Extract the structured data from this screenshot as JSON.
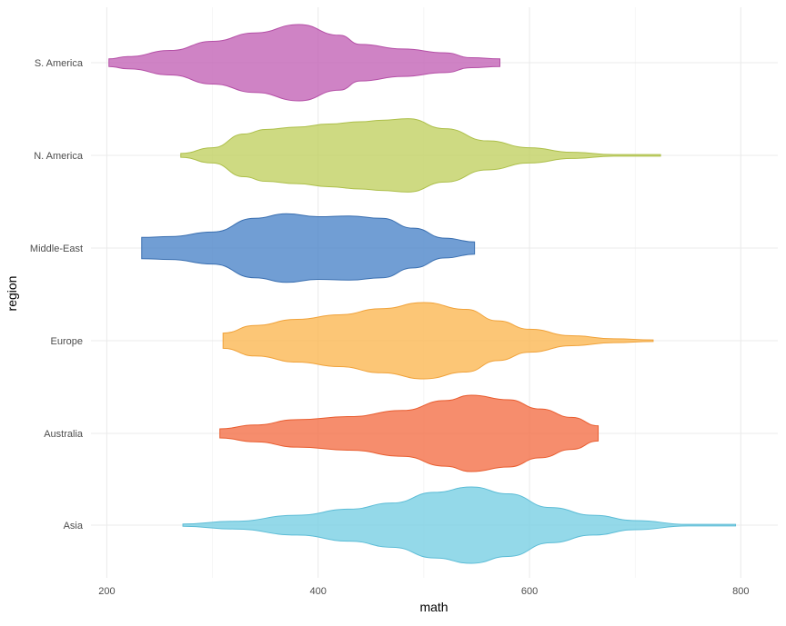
{
  "chart_data": {
    "type": "violin",
    "orientation": "horizontal",
    "title": "",
    "xlabel": "math",
    "ylabel": "region",
    "xlim": [
      185,
      835
    ],
    "x_ticks": [
      200,
      400,
      600,
      800
    ],
    "x_tick_labels": [
      "200",
      "400",
      "600",
      "800"
    ],
    "grid": true,
    "legend": "none",
    "categories": [
      "S. America",
      "N. America",
      "Middle-East",
      "Europe",
      "Australia",
      "Asia"
    ],
    "series": [
      {
        "category": "S. America",
        "fill": "#c364b6",
        "stroke": "#b44fa6",
        "profile": [
          [
            202,
            0.1
          ],
          [
            220,
            0.16
          ],
          [
            260,
            0.32
          ],
          [
            300,
            0.56
          ],
          [
            340,
            0.78
          ],
          [
            382,
            1.0
          ],
          [
            420,
            0.72
          ],
          [
            440,
            0.48
          ],
          [
            480,
            0.36
          ],
          [
            520,
            0.26
          ],
          [
            545,
            0.13
          ],
          [
            572,
            0.1
          ]
        ]
      },
      {
        "category": "N. America",
        "fill": "#c2d163",
        "stroke": "#adbf4a",
        "profile": [
          [
            270,
            0.05
          ],
          [
            300,
            0.2
          ],
          [
            330,
            0.56
          ],
          [
            350,
            0.68
          ],
          [
            380,
            0.74
          ],
          [
            410,
            0.82
          ],
          [
            440,
            0.88
          ],
          [
            460,
            0.92
          ],
          [
            485,
            0.96
          ],
          [
            520,
            0.7
          ],
          [
            560,
            0.38
          ],
          [
            600,
            0.2
          ],
          [
            640,
            0.08
          ],
          [
            680,
            0.02
          ],
          [
            724,
            0.02
          ]
        ]
      },
      {
        "category": "Middle-East",
        "fill": "#4d86c9",
        "stroke": "#3a6fb0",
        "profile": [
          [
            233,
            0.28
          ],
          [
            260,
            0.3
          ],
          [
            300,
            0.42
          ],
          [
            340,
            0.78
          ],
          [
            370,
            0.9
          ],
          [
            400,
            0.82
          ],
          [
            430,
            0.84
          ],
          [
            460,
            0.78
          ],
          [
            490,
            0.52
          ],
          [
            520,
            0.26
          ],
          [
            548,
            0.16
          ]
        ]
      },
      {
        "category": "Europe",
        "fill": "#fbb854",
        "stroke": "#f0a23a",
        "profile": [
          [
            310,
            0.2
          ],
          [
            340,
            0.4
          ],
          [
            380,
            0.56
          ],
          [
            420,
            0.68
          ],
          [
            460,
            0.84
          ],
          [
            500,
            1.0
          ],
          [
            540,
            0.82
          ],
          [
            570,
            0.52
          ],
          [
            600,
            0.3
          ],
          [
            640,
            0.13
          ],
          [
            680,
            0.05
          ],
          [
            717,
            0.02
          ]
        ]
      },
      {
        "category": "Australia",
        "fill": "#f47048",
        "stroke": "#e85d30",
        "profile": [
          [
            307,
            0.12
          ],
          [
            340,
            0.22
          ],
          [
            380,
            0.36
          ],
          [
            430,
            0.44
          ],
          [
            480,
            0.6
          ],
          [
            520,
            0.86
          ],
          [
            545,
            1.0
          ],
          [
            580,
            0.88
          ],
          [
            610,
            0.64
          ],
          [
            640,
            0.42
          ],
          [
            665,
            0.2
          ]
        ]
      },
      {
        "category": "Asia",
        "fill": "#79cfe3",
        "stroke": "#5cbcd6",
        "profile": [
          [
            272,
            0.03
          ],
          [
            320,
            0.1
          ],
          [
            380,
            0.26
          ],
          [
            430,
            0.42
          ],
          [
            470,
            0.58
          ],
          [
            510,
            0.86
          ],
          [
            545,
            1.0
          ],
          [
            580,
            0.82
          ],
          [
            620,
            0.46
          ],
          [
            660,
            0.26
          ],
          [
            700,
            0.12
          ],
          [
            750,
            0.02
          ],
          [
            795,
            0.02
          ]
        ]
      }
    ]
  }
}
